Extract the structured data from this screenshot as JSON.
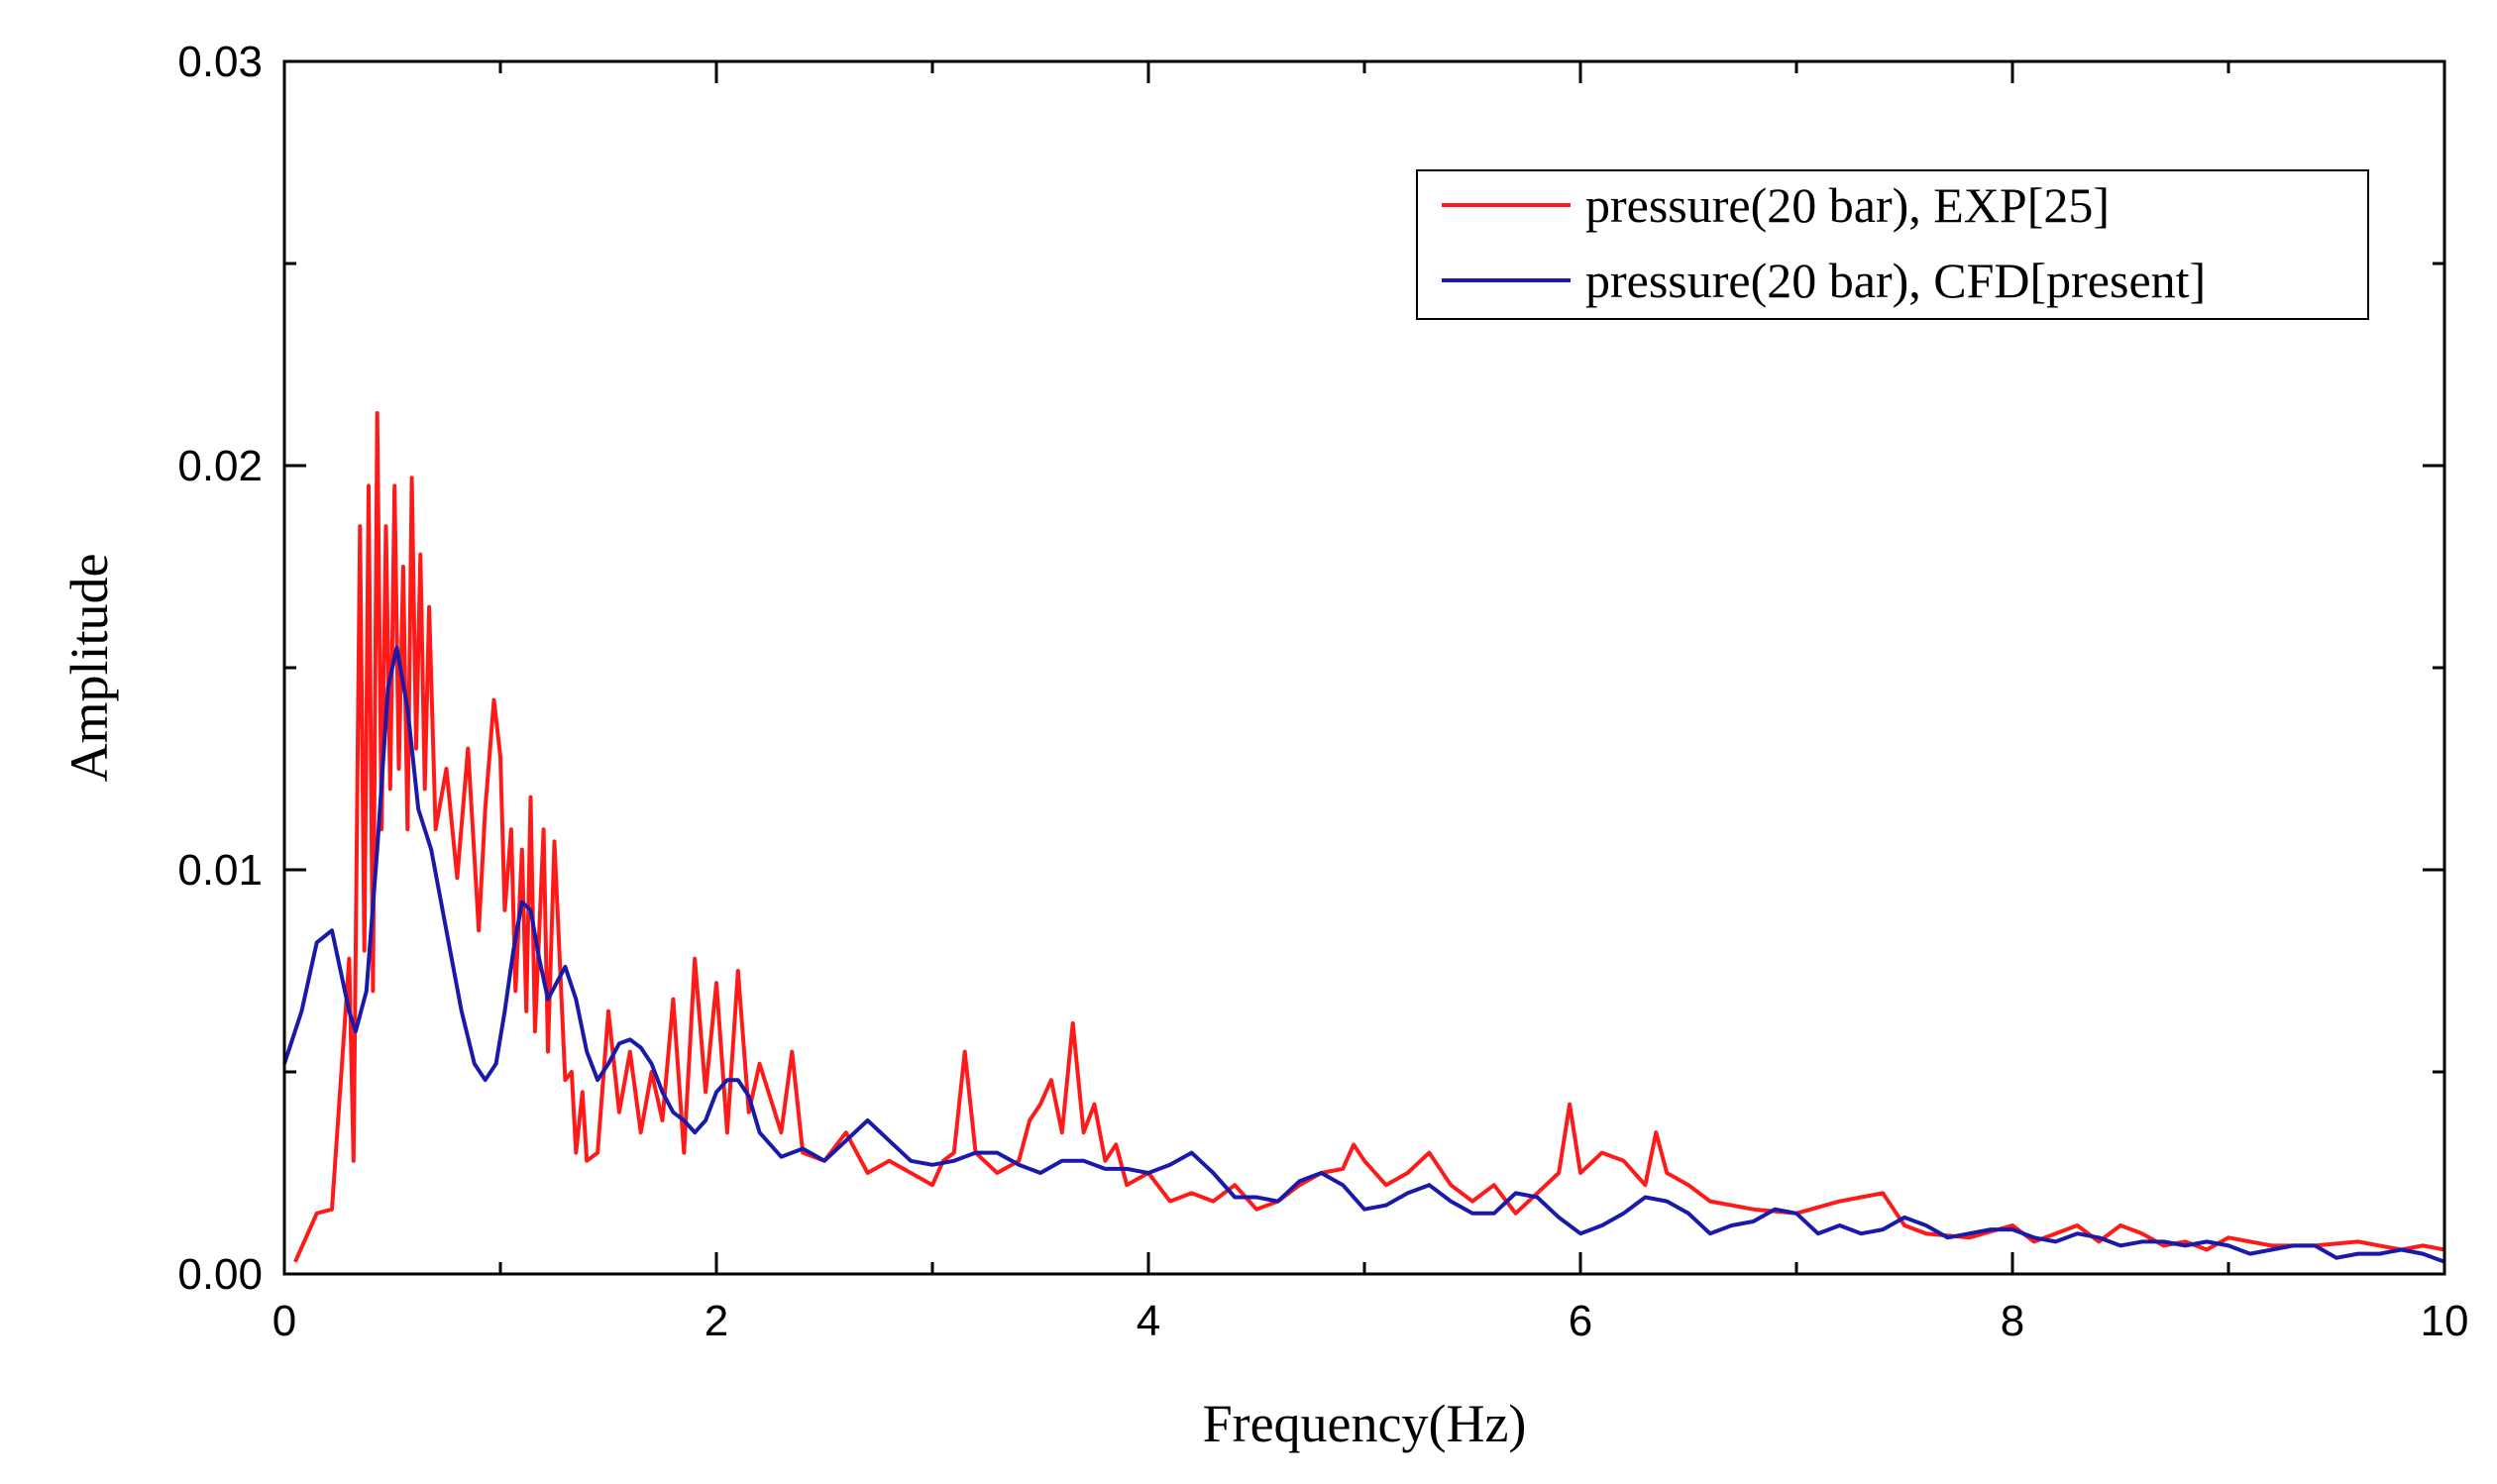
{
  "chart_data": {
    "type": "line",
    "title": "",
    "xlabel": "Frequency(Hz)",
    "ylabel": "Amplitude",
    "xlim": [
      0,
      10
    ],
    "ylim": [
      0,
      0.03
    ],
    "x_ticks": [
      "0",
      "2",
      "4",
      "6",
      "8",
      "10"
    ],
    "y_ticks": [
      "0.00",
      "0.01",
      "0.02",
      "0.03"
    ],
    "x_tick_values": [
      0,
      2,
      4,
      6,
      8,
      10
    ],
    "y_tick_values": [
      0,
      0.01,
      0.02,
      0.03
    ],
    "grid": false,
    "legend_position": "top-right",
    "series": [
      {
        "name": "pressure(20 bar), EXP[25]",
        "color": "#ff1a1a",
        "x": [
          0.05,
          0.15,
          0.22,
          0.3,
          0.32,
          0.35,
          0.37,
          0.39,
          0.41,
          0.43,
          0.45,
          0.47,
          0.49,
          0.51,
          0.53,
          0.55,
          0.57,
          0.59,
          0.61,
          0.63,
          0.65,
          0.67,
          0.7,
          0.75,
          0.8,
          0.85,
          0.9,
          0.93,
          0.97,
          1.0,
          1.02,
          1.05,
          1.07,
          1.1,
          1.12,
          1.14,
          1.16,
          1.2,
          1.22,
          1.25,
          1.3,
          1.33,
          1.35,
          1.38,
          1.4,
          1.45,
          1.5,
          1.55,
          1.6,
          1.65,
          1.7,
          1.75,
          1.8,
          1.85,
          1.9,
          1.95,
          2.0,
          2.05,
          2.1,
          2.15,
          2.2,
          2.3,
          2.35,
          2.4,
          2.5,
          2.6,
          2.7,
          2.8,
          2.9,
          3.0,
          3.05,
          3.1,
          3.15,
          3.2,
          3.3,
          3.4,
          3.45,
          3.5,
          3.55,
          3.6,
          3.65,
          3.7,
          3.75,
          3.8,
          3.85,
          3.9,
          4.0,
          4.1,
          4.2,
          4.3,
          4.4,
          4.5,
          4.6,
          4.7,
          4.8,
          4.9,
          4.95,
          5.0,
          5.1,
          5.2,
          5.3,
          5.4,
          5.5,
          5.6,
          5.7,
          5.8,
          5.9,
          5.95,
          6.0,
          6.1,
          6.2,
          6.3,
          6.35,
          6.4,
          6.5,
          6.6,
          6.8,
          7.0,
          7.2,
          7.4,
          7.5,
          7.6,
          7.8,
          8.0,
          8.1,
          8.2,
          8.3,
          8.4,
          8.5,
          8.6,
          8.7,
          8.8,
          8.9,
          9.0,
          9.1,
          9.2,
          9.4,
          9.6,
          9.8,
          9.9,
          10.0
        ],
        "values": [
          0.0003,
          0.0015,
          0.0016,
          0.0078,
          0.0028,
          0.0185,
          0.008,
          0.0195,
          0.007,
          0.0213,
          0.011,
          0.0185,
          0.012,
          0.0195,
          0.0125,
          0.0175,
          0.011,
          0.0197,
          0.013,
          0.0178,
          0.012,
          0.0165,
          0.011,
          0.0125,
          0.0098,
          0.013,
          0.0085,
          0.0115,
          0.0142,
          0.0128,
          0.009,
          0.011,
          0.007,
          0.0105,
          0.0065,
          0.0118,
          0.006,
          0.011,
          0.0055,
          0.0107,
          0.0048,
          0.005,
          0.003,
          0.0045,
          0.0028,
          0.003,
          0.0065,
          0.004,
          0.0055,
          0.0035,
          0.005,
          0.0038,
          0.0068,
          0.003,
          0.0078,
          0.0045,
          0.0072,
          0.0035,
          0.0075,
          0.004,
          0.0052,
          0.0035,
          0.0055,
          0.003,
          0.0028,
          0.0035,
          0.0025,
          0.0028,
          0.0025,
          0.0022,
          0.0028,
          0.003,
          0.0055,
          0.003,
          0.0025,
          0.0028,
          0.0038,
          0.0042,
          0.0048,
          0.0035,
          0.0062,
          0.0035,
          0.0042,
          0.0028,
          0.0032,
          0.0022,
          0.0025,
          0.0018,
          0.002,
          0.0018,
          0.0022,
          0.0016,
          0.0018,
          0.0022,
          0.0025,
          0.0026,
          0.0032,
          0.0028,
          0.0022,
          0.0025,
          0.003,
          0.0022,
          0.0018,
          0.0022,
          0.0015,
          0.002,
          0.0025,
          0.0042,
          0.0025,
          0.003,
          0.0028,
          0.0022,
          0.0035,
          0.0025,
          0.0022,
          0.0018,
          0.0016,
          0.0015,
          0.0018,
          0.002,
          0.0012,
          0.001,
          0.0009,
          0.0012,
          0.0008,
          0.001,
          0.0012,
          0.0008,
          0.0012,
          0.001,
          0.0007,
          0.0008,
          0.0006,
          0.0009,
          0.0008,
          0.0007,
          0.0007,
          0.0008,
          0.0006,
          0.0007,
          0.0006
        ]
      },
      {
        "name": "pressure(20 bar), CFD[present]",
        "color": "#1a1aaa",
        "x": [
          0.0,
          0.08,
          0.15,
          0.22,
          0.3,
          0.33,
          0.38,
          0.43,
          0.48,
          0.52,
          0.57,
          0.62,
          0.68,
          0.75,
          0.82,
          0.88,
          0.93,
          0.98,
          1.02,
          1.06,
          1.1,
          1.14,
          1.18,
          1.22,
          1.26,
          1.3,
          1.35,
          1.4,
          1.45,
          1.5,
          1.55,
          1.6,
          1.65,
          1.7,
          1.75,
          1.8,
          1.85,
          1.9,
          1.95,
          2.0,
          2.05,
          2.1,
          2.15,
          2.2,
          2.3,
          2.4,
          2.5,
          2.6,
          2.7,
          2.8,
          2.9,
          3.0,
          3.1,
          3.2,
          3.3,
          3.4,
          3.5,
          3.6,
          3.7,
          3.8,
          3.9,
          4.0,
          4.1,
          4.2,
          4.3,
          4.4,
          4.5,
          4.6,
          4.7,
          4.8,
          4.9,
          5.0,
          5.1,
          5.2,
          5.3,
          5.4,
          5.5,
          5.6,
          5.7,
          5.8,
          5.9,
          6.0,
          6.1,
          6.2,
          6.3,
          6.4,
          6.5,
          6.6,
          6.7,
          6.8,
          6.9,
          7.0,
          7.1,
          7.2,
          7.3,
          7.4,
          7.5,
          7.6,
          7.7,
          7.8,
          7.9,
          8.0,
          8.1,
          8.2,
          8.3,
          8.4,
          8.5,
          8.6,
          8.7,
          8.8,
          8.9,
          9.0,
          9.1,
          9.2,
          9.3,
          9.4,
          9.5,
          9.6,
          9.7,
          9.8,
          9.9,
          10.0
        ],
        "values": [
          0.0052,
          0.0065,
          0.0082,
          0.0085,
          0.0065,
          0.006,
          0.007,
          0.0105,
          0.0145,
          0.0155,
          0.014,
          0.0115,
          0.0105,
          0.0085,
          0.0065,
          0.0052,
          0.0048,
          0.0052,
          0.0065,
          0.008,
          0.0092,
          0.009,
          0.0078,
          0.0068,
          0.0072,
          0.0076,
          0.0068,
          0.0055,
          0.0048,
          0.0052,
          0.0057,
          0.0058,
          0.0056,
          0.0052,
          0.0045,
          0.004,
          0.0038,
          0.0035,
          0.0038,
          0.0045,
          0.0048,
          0.0048,
          0.0044,
          0.0035,
          0.0029,
          0.0031,
          0.0028,
          0.0033,
          0.0038,
          0.0033,
          0.0028,
          0.0027,
          0.0028,
          0.003,
          0.003,
          0.0027,
          0.0025,
          0.0028,
          0.0028,
          0.0026,
          0.0026,
          0.0025,
          0.0027,
          0.003,
          0.0025,
          0.0019,
          0.0019,
          0.0018,
          0.0023,
          0.0025,
          0.0022,
          0.0016,
          0.0017,
          0.002,
          0.0022,
          0.0018,
          0.0015,
          0.0015,
          0.002,
          0.0019,
          0.0014,
          0.001,
          0.0012,
          0.0015,
          0.0019,
          0.0018,
          0.0015,
          0.001,
          0.0012,
          0.0013,
          0.0016,
          0.0015,
          0.001,
          0.0012,
          0.001,
          0.0011,
          0.0014,
          0.0012,
          0.0009,
          0.001,
          0.0011,
          0.0011,
          0.0009,
          0.0008,
          0.001,
          0.0009,
          0.0007,
          0.0008,
          0.0008,
          0.0007,
          0.0008,
          0.0007,
          0.0005,
          0.0006,
          0.0007,
          0.0007,
          0.0004,
          0.0005,
          0.0005,
          0.0006,
          0.0005,
          0.0003
        ]
      }
    ]
  }
}
